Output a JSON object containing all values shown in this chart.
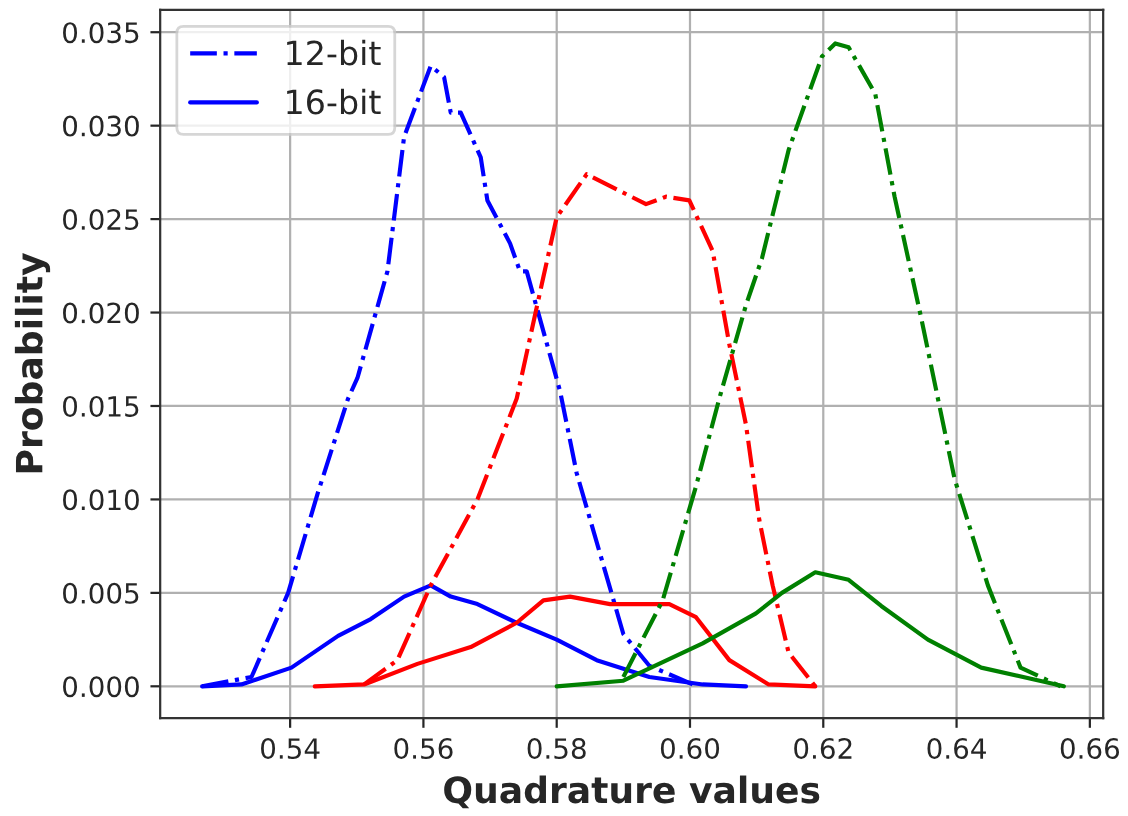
{
  "chart_data": {
    "type": "line",
    "xlabel": "Quadrature values",
    "ylabel": "Probability",
    "xlim": [
      0.5205,
      0.662
    ],
    "ylim": [
      -0.0017,
      0.0362
    ],
    "xticks": [
      {
        "value": 0.54,
        "label": "0.54"
      },
      {
        "value": 0.56,
        "label": "0.56"
      },
      {
        "value": 0.58,
        "label": "0.58"
      },
      {
        "value": 0.6,
        "label": "0.60"
      },
      {
        "value": 0.62,
        "label": "0.62"
      },
      {
        "value": 0.64,
        "label": "0.64"
      },
      {
        "value": 0.66,
        "label": "0.66"
      }
    ],
    "yticks": [
      {
        "value": 0,
        "label": "0.000"
      },
      {
        "value": 0.005,
        "label": "0.005"
      },
      {
        "value": 0.01,
        "label": "0.010"
      },
      {
        "value": 0.015,
        "label": "0.015"
      },
      {
        "value": 0.02,
        "label": "0.020"
      },
      {
        "value": 0.025,
        "label": "0.025"
      },
      {
        "value": 0.03,
        "label": "0.030"
      },
      {
        "value": 0.035,
        "label": "0.035"
      }
    ],
    "grid": true,
    "legend": "top left",
    "series": [
      {
        "name": "12-bit",
        "color": "#0000ff",
        "line_style": "dashdot",
        "x": [
          0.5268,
          0.5342,
          0.5397,
          0.5442,
          0.5487,
          0.5501,
          0.5546,
          0.5571,
          0.5611,
          0.5631,
          0.5641,
          0.5656,
          0.5686,
          0.5696,
          0.573,
          0.5745,
          0.5755,
          0.5805,
          0.583,
          0.59,
          0.5939,
          0.6004
        ],
        "values": [
          0,
          0.0005,
          0.005,
          0.0104,
          0.0154,
          0.0165,
          0.0222,
          0.0294,
          0.0332,
          0.0326,
          0.0307,
          0.0307,
          0.0283,
          0.026,
          0.0237,
          0.0222,
          0.0222,
          0.0158,
          0.0114,
          0.0028,
          0.0011,
          0.0001
        ]
      },
      {
        "name": "16-bit",
        "color": "#0000ff",
        "line_style": "solid",
        "x": [
          0.5268,
          0.5327,
          0.5402,
          0.5472,
          0.5521,
          0.5571,
          0.5611,
          0.5641,
          0.5681,
          0.574,
          0.58,
          0.586,
          0.5939,
          0.6019,
          0.6084
        ],
        "values": [
          0,
          0.0001,
          0.001,
          0.0027,
          0.0036,
          0.0048,
          0.0054,
          0.0048,
          0.0044,
          0.0034,
          0.0025,
          0.0014,
          0.0005,
          0.0001,
          0
        ]
      },
      {
        "color": "#ff0000",
        "line_style": "dashdot",
        "x": [
          0.5511,
          0.5561,
          0.5611,
          0.5681,
          0.574,
          0.578,
          0.58,
          0.5845,
          0.5895,
          0.5934,
          0.5964,
          0.5999,
          0.6034,
          0.6059,
          0.6084,
          0.6104,
          0.6124,
          0.6148,
          0.6188
        ],
        "values": [
          0.0001,
          0.0014,
          0.0054,
          0.01,
          0.0154,
          0.0219,
          0.0251,
          0.0274,
          0.0265,
          0.0258,
          0.0262,
          0.026,
          0.0233,
          0.0183,
          0.014,
          0.0089,
          0.0054,
          0.0018,
          0
        ]
      },
      {
        "color": "#ff0000",
        "line_style": "solid",
        "x": [
          0.5437,
          0.5511,
          0.5591,
          0.5671,
          0.574,
          0.578,
          0.582,
          0.588,
          0.5969,
          0.6009,
          0.6059,
          0.6118,
          0.6188
        ],
        "values": [
          0,
          0.0001,
          0.0012,
          0.0021,
          0.0034,
          0.0046,
          0.0048,
          0.0044,
          0.0044,
          0.0037,
          0.0014,
          0.0001,
          0
        ]
      },
      {
        "color": "#008000",
        "line_style": "dashdot",
        "x": [
          0.59,
          0.5959,
          0.6009,
          0.6044,
          0.6084,
          0.6108,
          0.6148,
          0.6198,
          0.6218,
          0.6238,
          0.6278,
          0.6307,
          0.6347,
          0.6397,
          0.6447,
          0.6496,
          0.6556
        ],
        "values": [
          0.0005,
          0.0046,
          0.0107,
          0.0154,
          0.0204,
          0.0229,
          0.0287,
          0.0337,
          0.0344,
          0.0342,
          0.0317,
          0.0262,
          0.0197,
          0.0111,
          0.0054,
          0.001,
          0
        ]
      },
      {
        "color": "#008000",
        "line_style": "solid",
        "x": [
          0.58,
          0.59,
          0.6019,
          0.6099,
          0.6138,
          0.6188,
          0.6238,
          0.6287,
          0.6357,
          0.6437,
          0.6561
        ],
        "values": [
          0,
          0.0003,
          0.0023,
          0.0039,
          0.005,
          0.0061,
          0.0057,
          0.0043,
          0.0025,
          0.001,
          0
        ]
      }
    ]
  }
}
